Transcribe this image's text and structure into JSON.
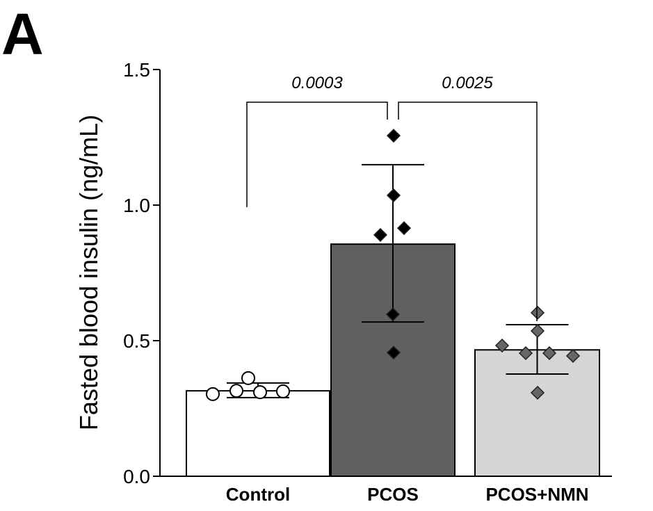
{
  "panel_label": "A",
  "chart_data": {
    "type": "bar",
    "ylabel": "Fasted blood insulin (ng/mL)",
    "xlabel": "",
    "ylim": [
      0,
      1.5
    ],
    "yticks": [
      "0.0",
      "0.5",
      "1.0",
      "1.5"
    ],
    "grid": false,
    "categories": [
      "Control",
      "PCOS",
      "PCOS+NMN"
    ],
    "values": [
      0.315,
      0.856,
      0.466
    ],
    "error_upper": [
      0.344,
      1.149,
      0.559
    ],
    "error_lower": [
      0.29,
      0.569,
      0.377
    ],
    "colors": [
      "#ffffff",
      "#606060",
      "#d6d6d6"
    ],
    "point_styles": [
      {
        "shape": "circle",
        "fill": "#ffffff"
      },
      {
        "shape": "diamond",
        "fill": "#000000"
      },
      {
        "shape": "diamond",
        "fill": "#666666"
      }
    ],
    "points": [
      [
        0.303,
        0.315,
        0.362,
        0.31,
        0.313
      ],
      [
        1.256,
        1.036,
        0.915,
        0.89,
        0.597,
        0.456
      ],
      [
        0.603,
        0.536,
        0.482,
        0.454,
        0.454,
        0.444,
        0.308
      ]
    ],
    "significance": [
      {
        "from": "Control",
        "to": "PCOS",
        "label": "0.0003"
      },
      {
        "from": "PCOS",
        "to": "PCOS+NMN",
        "label": "0.0025"
      }
    ]
  }
}
